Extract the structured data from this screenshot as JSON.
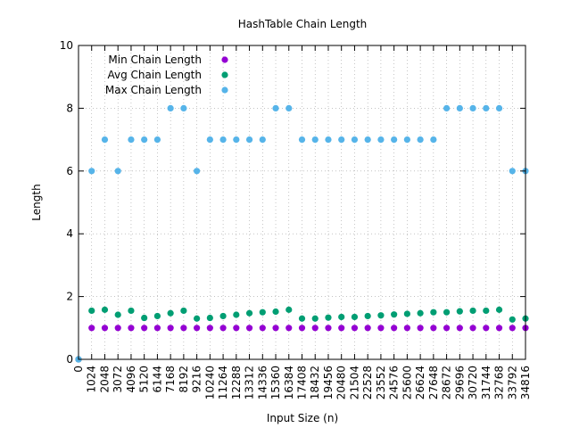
{
  "chart_data": {
    "type": "scatter",
    "title": "HashTable Chain Length",
    "xlabel": "Input Size (n)",
    "ylabel": "Length",
    "ylim": [
      0,
      10
    ],
    "yticks": [
      "0",
      "2",
      "4",
      "6",
      "8",
      "10"
    ],
    "grid": true,
    "legend_position": "top-left",
    "x": [
      0,
      1024,
      2048,
      3072,
      4096,
      5120,
      6144,
      7168,
      8192,
      9216,
      10240,
      11264,
      12288,
      13312,
      14336,
      15360,
      16384,
      17408,
      18432,
      19456,
      20480,
      21504,
      22528,
      23552,
      24576,
      25600,
      26624,
      27648,
      28672,
      29696,
      30720,
      31744,
      32768,
      33792,
      34816
    ],
    "xtick_labels": [
      "0",
      "1024",
      "2048",
      "3072",
      "4096",
      "5120",
      "6144",
      "7168",
      "8192",
      "9216",
      "10240",
      "11264",
      "12288",
      "13312",
      "14336",
      "15360",
      "16384",
      "17408",
      "18432",
      "19456",
      "20480",
      "21504",
      "22528",
      "23552",
      "24576",
      "25600",
      "26624",
      "27648",
      "28672",
      "29696",
      "30720",
      "31744",
      "32768",
      "33792",
      "34816"
    ],
    "series": [
      {
        "name": "Min Chain Length",
        "color": "#9400d3",
        "values": [
          0,
          1,
          1,
          1,
          1,
          1,
          1,
          1,
          1,
          1,
          1,
          1,
          1,
          1,
          1,
          1,
          1,
          1,
          1,
          1,
          1,
          1,
          1,
          1,
          1,
          1,
          1,
          1,
          1,
          1,
          1,
          1,
          1,
          1,
          1
        ]
      },
      {
        "name": "Avg Chain Length",
        "color": "#009e73",
        "values": [
          0,
          1.55,
          1.58,
          1.42,
          1.55,
          1.32,
          1.38,
          1.47,
          1.55,
          1.3,
          1.32,
          1.38,
          1.42,
          1.47,
          1.5,
          1.52,
          1.58,
          1.3,
          1.3,
          1.33,
          1.35,
          1.35,
          1.38,
          1.4,
          1.43,
          1.45,
          1.47,
          1.5,
          1.5,
          1.53,
          1.55,
          1.55,
          1.58,
          1.27,
          1.3
        ]
      },
      {
        "name": "Max Chain Length",
        "color": "#56b4e9",
        "values": [
          0,
          6,
          7,
          6,
          7,
          7,
          7,
          8,
          8,
          6,
          7,
          7,
          7,
          7,
          7,
          8,
          8,
          7,
          7,
          7,
          7,
          7,
          7,
          7,
          7,
          7,
          7,
          7,
          8,
          8,
          8,
          8,
          8,
          6,
          6
        ]
      }
    ]
  }
}
